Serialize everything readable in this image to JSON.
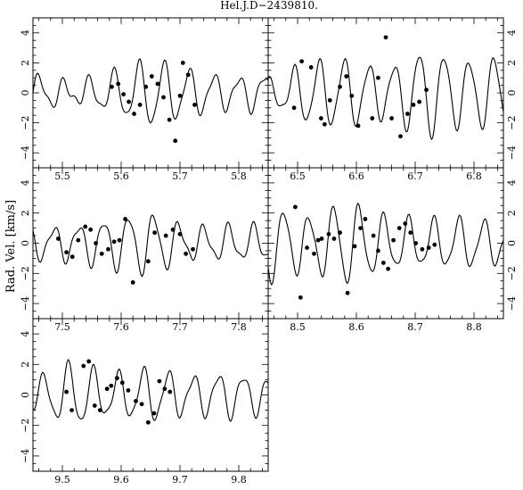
{
  "figure": {
    "title": "Hel.J.D−2439810.",
    "ylabel": "Rad. Vel. [km/s]"
  },
  "chart_data": [
    {
      "type": "scatter",
      "panel": "top-left",
      "xlim": [
        5.45,
        5.85
      ],
      "ylim": [
        -5,
        5
      ],
      "xticks": [
        "5.5",
        "5.6",
        "5.7",
        "5.8"
      ],
      "yticks": [
        "−4",
        "−2",
        "0",
        "2",
        "4"
      ],
      "curve_amplitude": [
        1.2,
        0.6,
        1.3,
        2.2,
        1.5,
        1.0,
        1.2
      ],
      "series": [
        {
          "x": [
            5.584,
            5.595,
            5.604,
            5.613,
            5.622,
            5.632,
            5.642,
            5.652,
            5.662,
            5.672,
            5.682,
            5.692,
            5.7,
            5.705,
            5.714,
            5.725
          ],
          "y": [
            0.4,
            0.6,
            -0.1,
            -0.6,
            -1.4,
            -0.8,
            0.4,
            1.1,
            0.6,
            -0.3,
            -1.8,
            -3.2,
            -0.2,
            2.0,
            1.2,
            -0.8
          ]
        }
      ]
    },
    {
      "type": "scatter",
      "panel": "top-right",
      "xlim": [
        6.45,
        6.85
      ],
      "ylim": [
        -5,
        5
      ],
      "xticks": [
        "6.5",
        "6.6",
        "6.7",
        "6.8"
      ],
      "yticks": [
        "−4",
        "−2",
        "0",
        "2",
        "4"
      ],
      "curve_amplitude": [
        0.7,
        2.0,
        2.2,
        1.6,
        2.9,
        2.1,
        2.4
      ],
      "series": [
        {
          "x": [
            6.494,
            6.507,
            6.523,
            6.54,
            6.546,
            6.555,
            6.572,
            6.583,
            6.592,
            6.603,
            6.627,
            6.637,
            6.65,
            6.66,
            6.675,
            6.687,
            6.697,
            6.707,
            6.719
          ],
          "y": [
            -1.0,
            2.1,
            1.7,
            -1.7,
            -2.1,
            -0.5,
            0.4,
            1.1,
            -0.2,
            -2.2,
            -1.7,
            1.0,
            3.7,
            -1.7,
            -2.9,
            -1.4,
            -0.8,
            -0.6,
            0.2
          ]
        }
      ]
    },
    {
      "type": "scatter",
      "panel": "middle-left",
      "xlim": [
        7.45,
        7.85
      ],
      "ylim": [
        -5,
        5
      ],
      "xticks": [
        "7.5",
        "7.6",
        "7.7",
        "7.8"
      ],
      "yticks": [
        "−4",
        "−2",
        "0",
        "2",
        "4"
      ],
      "curve_amplitude": [
        1.0,
        1.1,
        1.6,
        2.0,
        1.0,
        1.1,
        1.1
      ],
      "series": [
        {
          "x": [
            7.493,
            7.507,
            7.517,
            7.527,
            7.539,
            7.548,
            7.557,
            7.567,
            7.578,
            7.588,
            7.597,
            7.607,
            7.62,
            7.646,
            7.657,
            7.676,
            7.688,
            7.7,
            7.71,
            7.722
          ],
          "y": [
            0.3,
            -0.6,
            -0.9,
            0.2,
            1.1,
            0.9,
            0.0,
            -0.7,
            -0.4,
            0.1,
            0.2,
            1.6,
            -2.6,
            -1.2,
            0.7,
            0.5,
            0.9,
            0.6,
            -0.7,
            -0.4
          ]
        }
      ]
    },
    {
      "type": "scatter",
      "panel": "middle-right",
      "xlim": [
        8.45,
        8.85
      ],
      "ylim": [
        -5,
        5
      ],
      "xticks": [
        "8.5",
        "8.6",
        "8.7",
        "8.8"
      ],
      "yticks": [
        "−4",
        "−2",
        "0",
        "2",
        "4"
      ],
      "curve_amplitude": [
        2.5,
        1.7,
        2.7,
        1.7,
        1.5,
        1.6,
        1.3
      ],
      "series": [
        {
          "x": [
            8.496,
            8.505,
            8.516,
            8.528,
            8.535,
            8.541,
            8.553,
            8.562,
            8.572,
            8.585,
            8.597,
            8.607,
            8.615,
            8.629,
            8.637,
            8.646,
            8.654,
            8.663,
            8.673,
            8.683,
            8.692,
            8.701,
            8.712,
            8.723,
            8.733
          ],
          "y": [
            2.4,
            -3.6,
            -0.3,
            -0.7,
            0.2,
            0.3,
            0.6,
            0.3,
            0.7,
            -3.3,
            -0.2,
            1.0,
            1.6,
            0.5,
            -0.5,
            -1.3,
            -1.7,
            0.2,
            1.0,
            1.3,
            0.7,
            0.0,
            -0.4,
            -0.3,
            -0.1
          ]
        }
      ]
    },
    {
      "type": "scatter",
      "panel": "bottom-left",
      "xlim": [
        9.45,
        9.85
      ],
      "ylim": [
        -5,
        5
      ],
      "xticks": [
        "9.5",
        "9.6",
        "9.7",
        "9.8"
      ],
      "yticks": [
        "−4",
        "−2",
        "0",
        "2",
        "4"
      ],
      "curve_amplitude": [
        0.9,
        2.1,
        1.3,
        1.7,
        1.2,
        1.4,
        1.1
      ],
      "series": [
        {
          "x": [
            9.507,
            9.516,
            9.536,
            9.545,
            9.555,
            9.564,
            9.576,
            9.583,
            9.593,
            9.602,
            9.612,
            9.625,
            9.635,
            9.646,
            9.656,
            9.665,
            9.674,
            9.683
          ],
          "y": [
            0.2,
            -1.0,
            1.9,
            2.2,
            -0.7,
            -1.0,
            0.4,
            0.6,
            1.1,
            0.8,
            0.3,
            -0.4,
            -0.6,
            -1.8,
            -1.2,
            0.9,
            0.4,
            0.2
          ]
        }
      ]
    }
  ]
}
